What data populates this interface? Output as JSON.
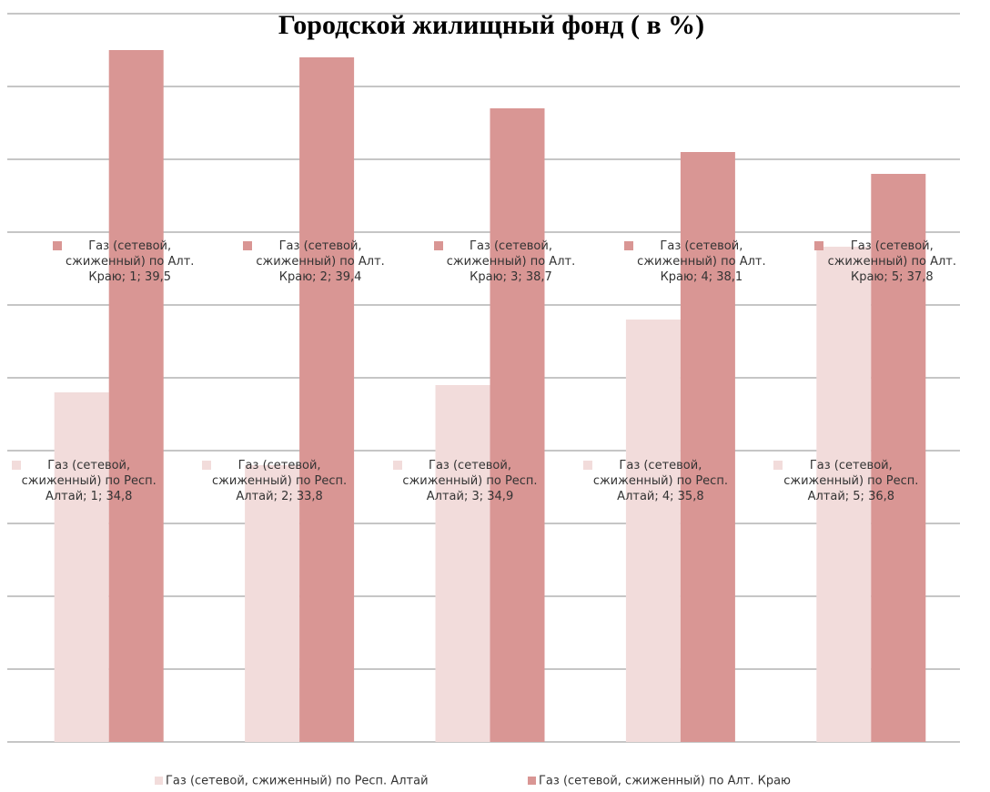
{
  "chart_data": {
    "type": "bar",
    "title": "Городской жилищный фонд ( в %)",
    "categories": [
      null,
      null,
      null,
      null,
      null
    ],
    "ylim": [
      30,
      40
    ],
    "yticks": [
      30,
      31,
      32,
      33,
      34,
      35,
      36,
      37,
      38,
      39,
      40
    ],
    "grid": true,
    "legend": "bottom",
    "series": [
      {
        "name": "Газ (сетевой, сжиженный) по Респ. Алтай",
        "color": "#f2dcdb",
        "values": [
          34.8,
          33.8,
          34.9,
          35.8,
          36.8
        ],
        "value_labels": [
          "Газ (сетевой, сжиженный) по Респ. Алтай; 1; 34,8",
          "Газ (сетевой, сжиженный) по Респ. Алтай; 2; 33,8",
          "Газ (сетевой, сжиженный) по Респ. Алтай; 3; 34,9",
          "Газ (сетевой, сжиженный) по Респ. Алтай; 4; 35,8",
          "Газ (сетевой, сжиженный) по Респ. Алтай; 5; 36,8"
        ]
      },
      {
        "name": "Газ (сетевой, сжиженный) по Алт. Краю",
        "color": "#d99694",
        "values": [
          39.5,
          39.4,
          38.7,
          38.1,
          37.8
        ],
        "value_labels": [
          "Газ (сетевой, сжиженный) по Алт. Краю; 1; 39,5",
          "Газ (сетевой, сжиженный) по Алт. Краю; 2; 39,4",
          "Газ (сетевой, сжиженный) по Алт. Краю; 3; 38,7",
          "Газ (сетевой, сжиженный) по Алт. Краю; 4; 38,1",
          "Газ (сетевой, сжиженный) по Алт. Краю; 5; 37,8"
        ]
      }
    ]
  }
}
